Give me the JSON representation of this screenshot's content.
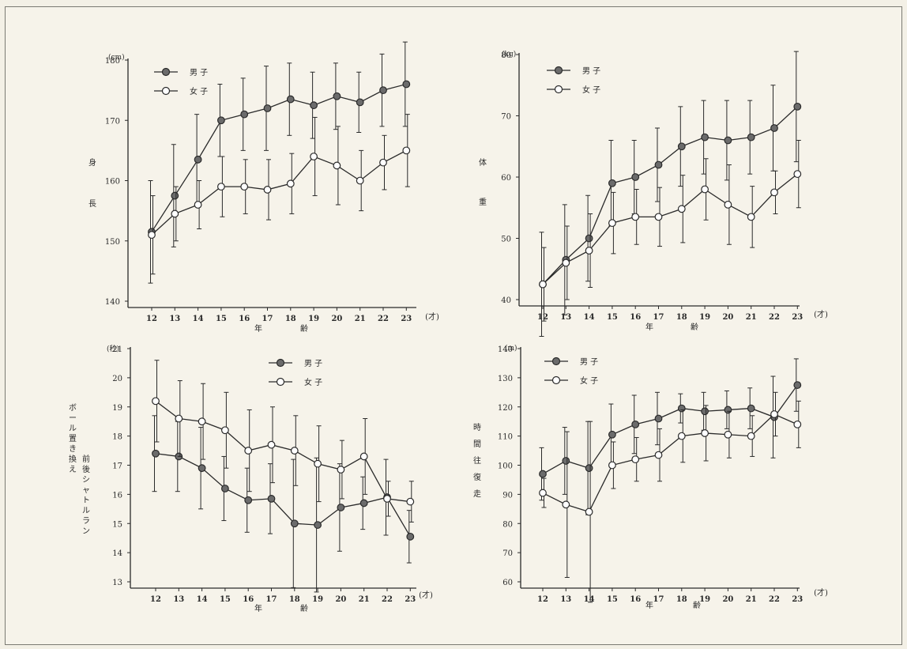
{
  "legend": {
    "male": "男 子",
    "female": "女 子"
  },
  "units": {
    "cm": "(cm)",
    "kg": "(kg)",
    "sec": "(秒)",
    "m": "(m)",
    "age": "(才)"
  },
  "xlabel_chars": [
    "年",
    "齢"
  ],
  "colors": {
    "male": "#6b6b6b",
    "female": "#ffffff",
    "ink": "#2a2a2a"
  },
  "chart_data": [
    {
      "type": "line",
      "ylabel": "身長",
      "unit": "(cm)",
      "x": [
        12,
        13,
        14,
        15,
        16,
        17,
        18,
        19,
        20,
        21,
        22,
        23
      ],
      "ylim": [
        140,
        180
      ],
      "yticks": [
        140,
        150,
        160,
        170,
        180
      ],
      "series": [
        {
          "name": "男 子",
          "values": [
            151.5,
            157.5,
            163.5,
            170,
            171,
            172,
            173.5,
            172.5,
            174,
            173,
            175,
            176
          ],
          "sd": [
            8.5,
            8.5,
            7.5,
            6,
            6,
            7,
            6,
            5.5,
            5.5,
            5,
            6,
            7
          ]
        },
        {
          "name": "女 子",
          "values": [
            151,
            154.5,
            156,
            159,
            159,
            158.5,
            159.5,
            164,
            162.5,
            160,
            163,
            165
          ],
          "sd": [
            6.5,
            4.5,
            4,
            5,
            4.5,
            5,
            5,
            6.5,
            6.5,
            5,
            4.5,
            6
          ]
        }
      ]
    },
    {
      "type": "line",
      "ylabel": "体重",
      "unit": "(kg)",
      "x": [
        12,
        13,
        14,
        15,
        16,
        17,
        18,
        19,
        20,
        21,
        22,
        23
      ],
      "ylim": [
        40,
        80
      ],
      "yticks": [
        40,
        50,
        60,
        70,
        80
      ],
      "series": [
        {
          "name": "男 子",
          "values": [
            42.5,
            46.5,
            50,
            59,
            60,
            62,
            65,
            66.5,
            66,
            66.5,
            68,
            71.5
          ],
          "sd": [
            8.5,
            9,
            7,
            7,
            6,
            6,
            6.5,
            6,
            6.5,
            6,
            7,
            9
          ]
        },
        {
          "name": "女 子",
          "values": [
            42.5,
            46,
            48,
            52.5,
            53.5,
            53.5,
            54.8,
            58,
            55.5,
            53.5,
            57.5,
            60.5
          ],
          "sd": [
            6,
            6,
            6,
            5,
            4.5,
            4.8,
            5.5,
            5,
            6.5,
            5,
            3.5,
            5.5
          ]
        }
      ]
    },
    {
      "type": "line",
      "ylabel": "ボール置き換え 前後シャトルラン",
      "unit": "(秒)",
      "x": [
        12,
        13,
        14,
        15,
        16,
        17,
        18,
        19,
        20,
        21,
        22,
        23
      ],
      "ylim": [
        13,
        21
      ],
      "yticks": [
        13,
        14,
        15,
        16,
        17,
        18,
        19,
        20,
        21
      ],
      "series": [
        {
          "name": "男 子",
          "values": [
            17.4,
            17.3,
            16.9,
            16.2,
            15.8,
            15.85,
            15.0,
            14.95,
            15.55,
            15.7,
            15.9,
            14.55
          ],
          "sd": [
            1.3,
            1.2,
            1.4,
            1.1,
            1.1,
            1.2,
            2.2,
            2.3,
            1.5,
            0.9,
            1.3,
            0.9
          ]
        },
        {
          "name": "女 子",
          "values": [
            19.2,
            18.6,
            18.5,
            18.2,
            17.5,
            17.7,
            17.5,
            17.05,
            16.85,
            17.3,
            15.85,
            15.75
          ],
          "sd": [
            1.4,
            1.3,
            1.3,
            1.3,
            1.4,
            1.3,
            1.2,
            1.3,
            1.0,
            1.3,
            0.6,
            0.7
          ]
        }
      ]
    },
    {
      "type": "line",
      "ylabel": "時間往復走",
      "unit": "(m)",
      "x": [
        12,
        13,
        14,
        15,
        16,
        17,
        18,
        19,
        20,
        21,
        22,
        23
      ],
      "ylim": [
        60,
        140
      ],
      "yticks": [
        60,
        70,
        80,
        90,
        100,
        110,
        120,
        130,
        140
      ],
      "series": [
        {
          "name": "男 子",
          "values": [
            97,
            101.5,
            99,
            110.5,
            114,
            116,
            119.5,
            118.5,
            119,
            119.5,
            116.5,
            127.5
          ],
          "sd": [
            9,
            11.5,
            16,
            10.5,
            10,
            9,
            5,
            6.5,
            6.5,
            7,
            14,
            9
          ]
        },
        {
          "name": "女 子",
          "values": [
            90.5,
            86.5,
            84,
            100,
            102,
            103.5,
            110,
            111,
            110.5,
            110,
            117.5,
            114
          ],
          "sd": [
            5,
            25,
            31,
            8,
            7.5,
            9,
            9,
            9.5,
            8,
            7,
            7.5,
            8
          ]
        }
      ]
    }
  ]
}
